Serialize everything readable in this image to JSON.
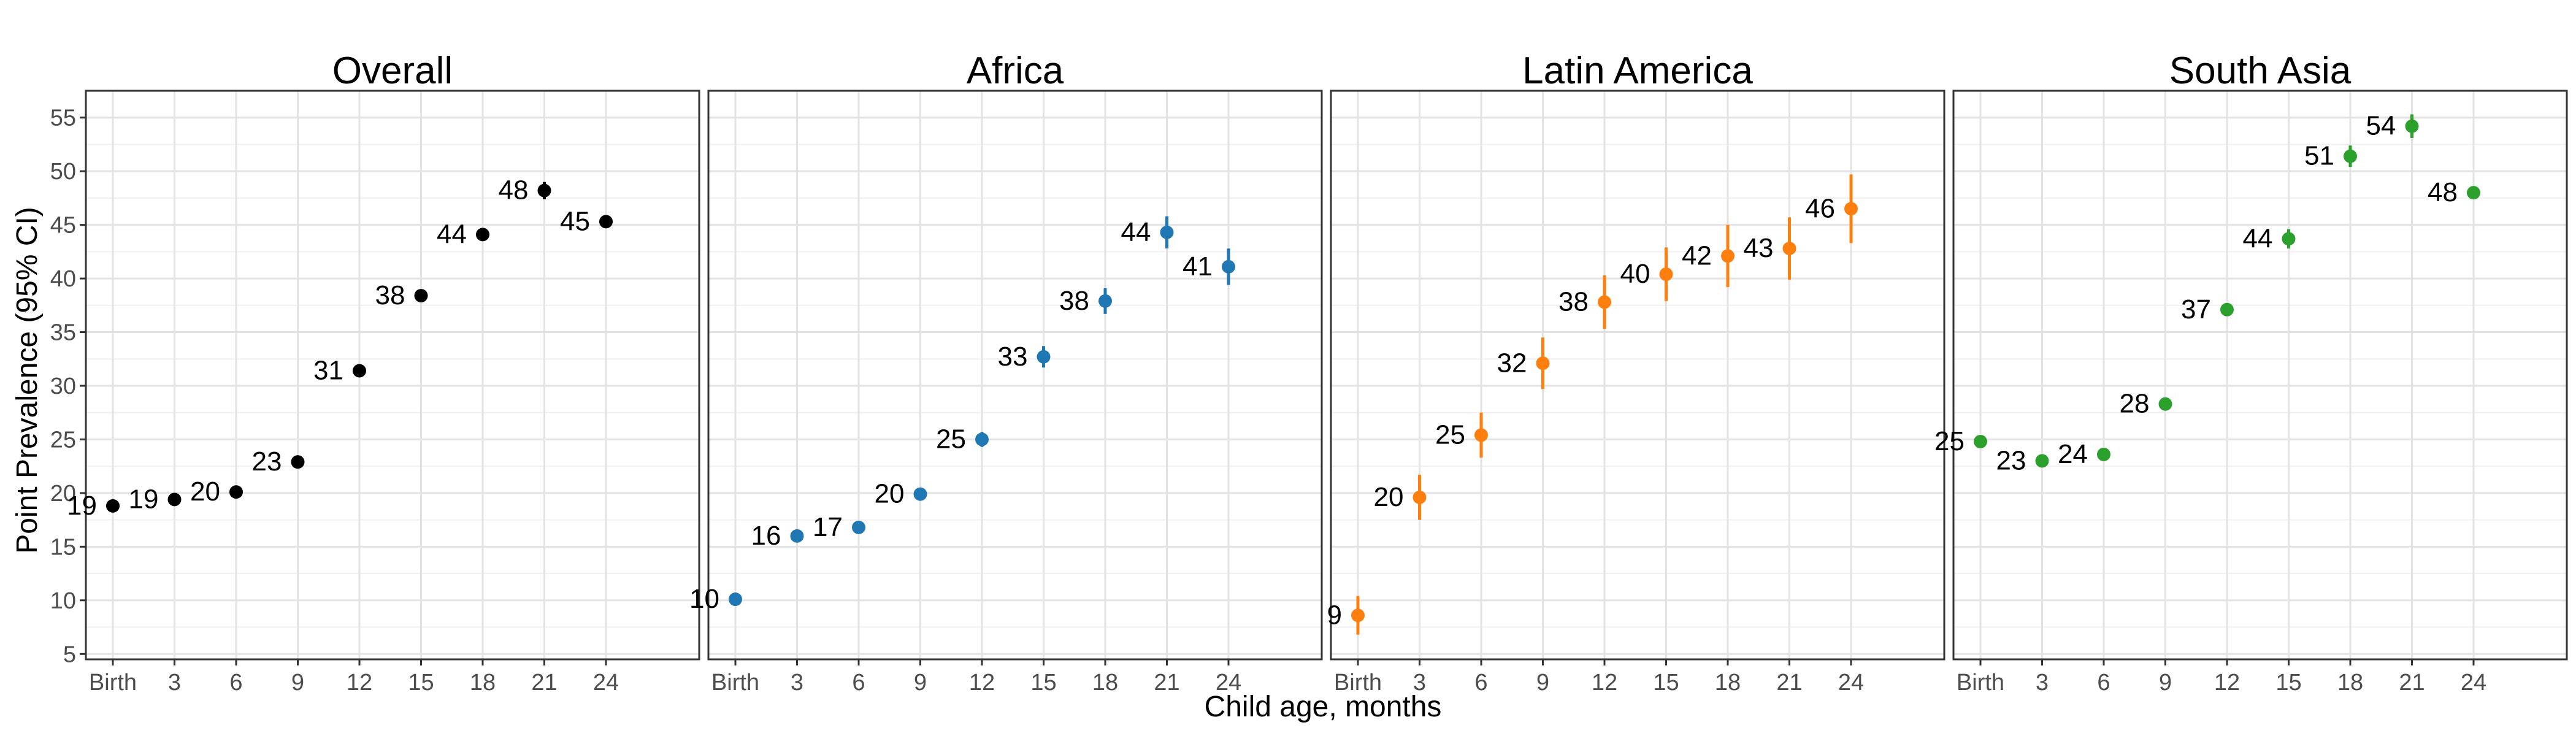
{
  "figure": {
    "ylabel": "Point Prevalence (95% CI)",
    "xlabel": "Child age, months"
  },
  "chart_data": [
    {
      "type": "scatter",
      "title": "Overall",
      "color": "#000000",
      "categories": [
        "Birth",
        "3",
        "6",
        "9",
        "12",
        "15",
        "18",
        "21",
        "24"
      ],
      "values": [
        18.8,
        19.4,
        20.1,
        22.9,
        31.4,
        38.4,
        44.1,
        48.2,
        45.3
      ],
      "ci_low": [
        18.3,
        18.9,
        19.6,
        22.4,
        30.9,
        37.8,
        43.5,
        47.4,
        44.8
      ],
      "ci_high": [
        19.3,
        19.9,
        20.6,
        23.4,
        31.9,
        39.0,
        44.7,
        49.0,
        45.8
      ],
      "labels": [
        "19",
        "19",
        "20",
        "23",
        "31",
        "38",
        "44",
        "48",
        "45"
      ],
      "ylim": [
        4.5,
        57.5
      ],
      "yticks": [
        5,
        10,
        15,
        20,
        25,
        30,
        35,
        40,
        45,
        50,
        55
      ],
      "grid": true
    },
    {
      "type": "scatter",
      "title": "Africa",
      "color": "#1f77b4",
      "categories": [
        "Birth",
        "3",
        "6",
        "9",
        "12",
        "15",
        "18",
        "21",
        "24"
      ],
      "values": [
        10.1,
        16.0,
        16.8,
        19.9,
        25.0,
        32.7,
        37.9,
        44.3,
        41.1
      ],
      "ci_low": [
        9.6,
        15.5,
        16.2,
        19.3,
        24.3,
        31.7,
        36.7,
        42.8,
        39.4
      ],
      "ci_high": [
        10.6,
        16.5,
        17.4,
        20.5,
        25.7,
        33.7,
        39.1,
        45.8,
        42.8
      ],
      "labels": [
        "10",
        "16",
        "17",
        "20",
        "25",
        "33",
        "38",
        "44",
        "41"
      ],
      "ylim": [
        4.5,
        57.5
      ],
      "grid": true
    },
    {
      "type": "scatter",
      "title": "Latin America",
      "color": "#ff7f0e",
      "categories": [
        "Birth",
        "3",
        "6",
        "9",
        "12",
        "15",
        "18",
        "21",
        "24"
      ],
      "values": [
        8.6,
        19.6,
        25.4,
        32.1,
        37.8,
        40.4,
        42.1,
        42.8,
        46.5
      ],
      "ci_low": [
        6.8,
        17.5,
        23.3,
        29.7,
        35.3,
        37.9,
        39.2,
        39.9,
        43.3
      ],
      "ci_high": [
        10.4,
        21.7,
        27.5,
        34.5,
        40.3,
        42.9,
        45.0,
        45.7,
        49.7
      ],
      "labels": [
        "9",
        "20",
        "25",
        "32",
        "38",
        "40",
        "42",
        "43",
        "46"
      ],
      "ylim": [
        4.5,
        57.5
      ],
      "grid": true
    },
    {
      "type": "scatter",
      "title": "South Asia",
      "color": "#2ca02c",
      "categories": [
        "Birth",
        "3",
        "6",
        "9",
        "12",
        "15",
        "18",
        "21",
        "24"
      ],
      "values": [
        24.8,
        23.0,
        23.6,
        28.3,
        37.1,
        43.7,
        51.4,
        54.2,
        48.0
      ],
      "ci_low": [
        24.3,
        22.5,
        23.1,
        27.8,
        36.6,
        42.8,
        50.4,
        53.1,
        47.5
      ],
      "ci_high": [
        25.3,
        23.5,
        24.1,
        28.8,
        37.6,
        44.6,
        52.4,
        55.3,
        48.5
      ],
      "labels": [
        "25",
        "23",
        "24",
        "28",
        "37",
        "44",
        "51",
        "54",
        "48"
      ],
      "ylim": [
        4.5,
        57.5
      ],
      "grid": true
    }
  ]
}
